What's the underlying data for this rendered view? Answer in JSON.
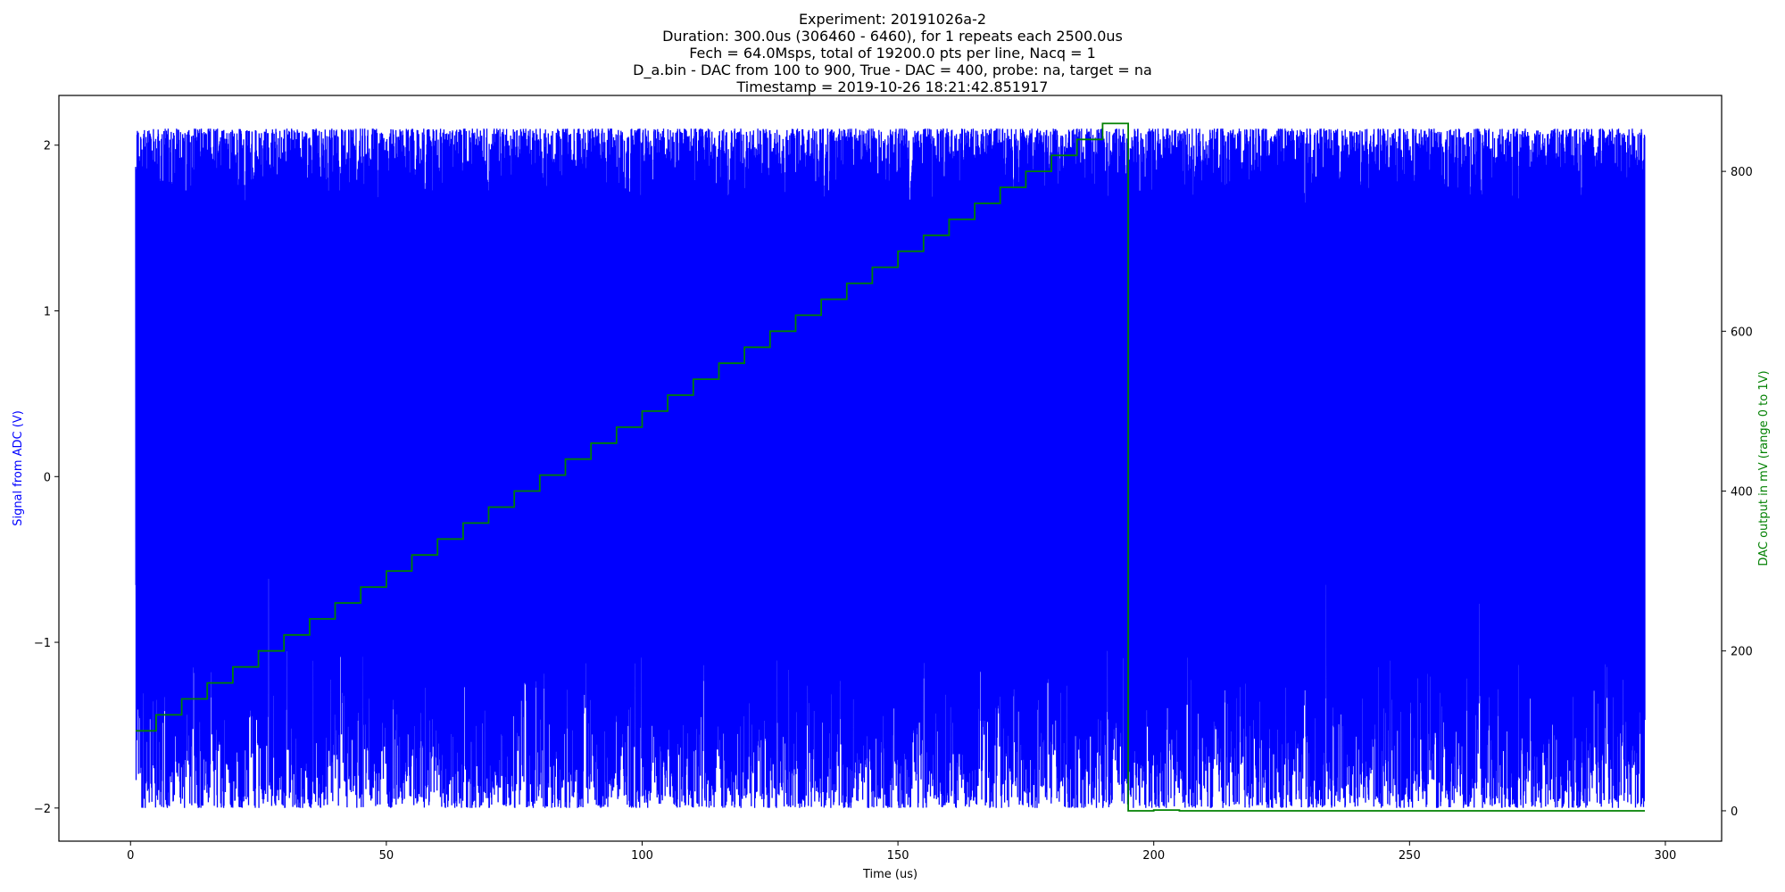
{
  "chart_data": {
    "type": "line",
    "title_lines": [
      "Experiment: 20191026a-2",
      "Duration: 300.0us (306460 - 6460), for 1 repeats each 2500.0us",
      "Fech = 64.0Msps, total of 19200.0 pts per line, Nacq = 1",
      "D_a.bin - DAC from 100 to 900, True - DAC = 400, probe: na, target = na",
      "Timestamp = 2019-10-26 18:21:42.851917"
    ],
    "xlabel": "Time (us)",
    "ylabel_left": "Signal from ADC (V)",
    "ylabel_right": "DAC output in mV (range 0 to 1V)",
    "xlim": [
      -14,
      311
    ],
    "ylim_left": [
      -2.2,
      2.3
    ],
    "ylim_right": [
      -38,
      895
    ],
    "xticks": [
      0,
      50,
      100,
      150,
      200,
      250,
      300
    ],
    "yticks_left": [
      -2,
      -1,
      0,
      1,
      2
    ],
    "yticks_right": [
      0,
      200,
      400,
      600,
      800
    ],
    "grid": false,
    "colors": {
      "signal": "#0000ff",
      "dac": "#008000",
      "left_axis_label": "#0000ff",
      "right_axis_label": "#008000"
    },
    "series": [
      {
        "axis": "left",
        "style": "dense oscillating signal",
        "x_range": [
          1,
          296
        ],
        "amplitude_range": [
          -2.0,
          2.1
        ]
      },
      {
        "axis": "right",
        "style": "step",
        "x": [
          1,
          5,
          10,
          15,
          20,
          25,
          30,
          35,
          40,
          45,
          50,
          55,
          60,
          65,
          70,
          75,
          80,
          85,
          90,
          95,
          100,
          105,
          110,
          115,
          120,
          125,
          130,
          135,
          140,
          145,
          150,
          155,
          160,
          165,
          170,
          175,
          180,
          185,
          190,
          195,
          200,
          205,
          210,
          296
        ],
        "values": [
          100,
          120,
          140,
          160,
          180,
          200,
          220,
          240,
          260,
          280,
          300,
          320,
          340,
          360,
          380,
          400,
          420,
          440,
          460,
          480,
          500,
          520,
          540,
          560,
          580,
          600,
          620,
          640,
          660,
          680,
          700,
          720,
          740,
          760,
          780,
          800,
          820,
          840,
          860,
          0,
          1,
          0,
          0,
          0
        ]
      }
    ]
  }
}
